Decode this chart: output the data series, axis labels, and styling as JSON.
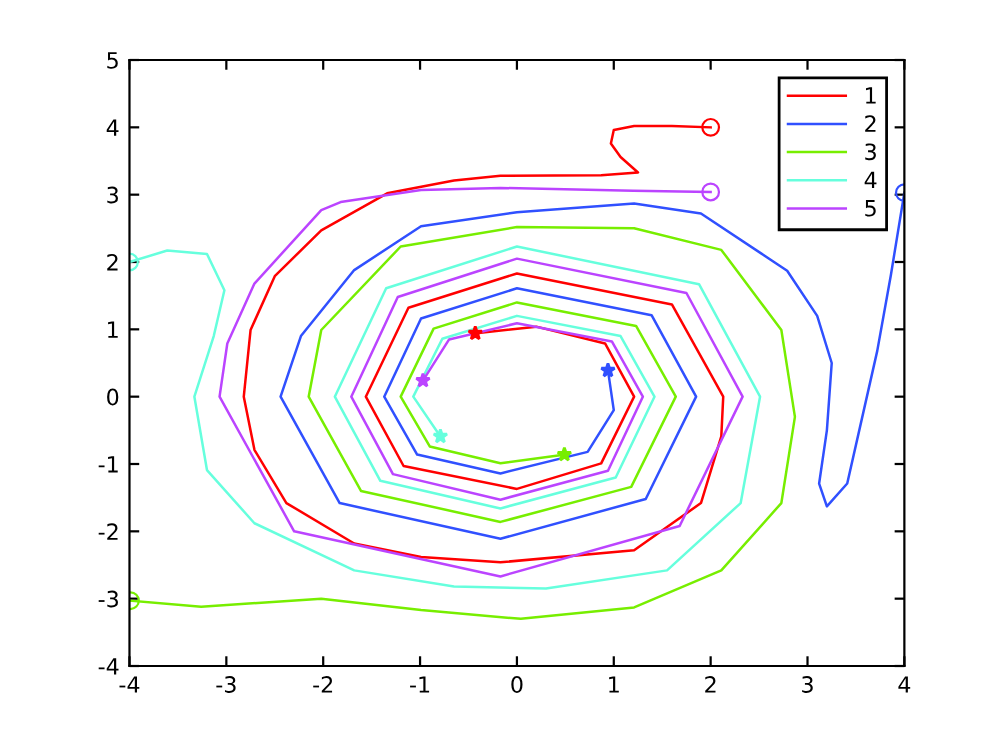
{
  "chart_data": {
    "type": "line",
    "xlim": [
      -4,
      4
    ],
    "ylim": [
      -4,
      5
    ],
    "xticks": [
      -4,
      -3,
      -2,
      -1,
      0,
      1,
      2,
      3,
      4
    ],
    "yticks": [
      -4,
      -3,
      -2,
      -1,
      0,
      1,
      2,
      3,
      4,
      5
    ],
    "grid": false,
    "legend": "top right",
    "series": [
      {
        "name": "1",
        "color": "#ff0000",
        "x": [
          2,
          1.6,
          1.21,
          1.0,
          0.97,
          1.07,
          1.25,
          0.87,
          -0.17,
          -0.65,
          -1.34,
          -2.02,
          -2.5,
          -2.75,
          -2.82,
          -2.71,
          -2.38,
          -1.68,
          -0.99,
          -0.17,
          1.21,
          1.9,
          2.11,
          2.13,
          1.6,
          0,
          -1.12,
          -1.56,
          -1.17,
          0,
          0.87,
          1.21,
          0.91,
          0.2,
          -0.43
        ],
        "values": [
          4,
          4.02,
          4.02,
          3.96,
          3.76,
          3.56,
          3.33,
          3.29,
          3.28,
          3.21,
          3.02,
          2.47,
          1.79,
          0.99,
          0,
          -0.79,
          -1.58,
          -2.18,
          -2.38,
          -2.46,
          -2.28,
          -1.58,
          -0.59,
          0,
          1.37,
          1.83,
          1.32,
          0,
          -1.03,
          -1.37,
          -0.99,
          0,
          0.79,
          1.04,
          0.94
        ]
      },
      {
        "name": "2",
        "color": "#3050ff",
        "x": [
          4,
          3.86,
          3.72,
          3.55,
          3.41,
          3.2,
          3.12,
          3.2,
          3.25,
          3.1,
          2.79,
          1.9,
          1.21,
          0,
          -0.99,
          -1.68,
          -2.23,
          -2.44,
          -1.83,
          -0.17,
          1.33,
          1.85,
          1.39,
          0,
          -0.99,
          -1.37,
          -1.03,
          -0.17,
          0.73,
          1.0,
          0.94
        ],
        "values": [
          3.03,
          1.8,
          0.68,
          -0.4,
          -1.29,
          -1.63,
          -1.29,
          -0.5,
          0.5,
          1.2,
          1.87,
          2.72,
          2.87,
          2.74,
          2.53,
          1.88,
          0.9,
          0,
          -1.58,
          -2.11,
          -1.52,
          0,
          1.21,
          1.61,
          1.16,
          0,
          -0.86,
          -1.14,
          -0.82,
          -0.2,
          0.39
        ]
      },
      {
        "name": "3",
        "color": "#77ee00",
        "x": [
          -3.99,
          -3.26,
          -2.02,
          -0.99,
          0.04,
          1.21,
          2.11,
          2.73,
          2.87,
          2.73,
          2.11,
          1.21,
          0,
          -1.2,
          -2.02,
          -2.15,
          -1.61,
          -0.17,
          1.18,
          1.64,
          1.23,
          0,
          -0.86,
          -1.2,
          -0.9,
          -0.17,
          0.49
        ],
        "values": [
          -3.03,
          -3.12,
          -3.0,
          -3.17,
          -3.3,
          -3.13,
          -2.58,
          -1.58,
          -0.3,
          0.99,
          2.18,
          2.5,
          2.52,
          2.23,
          0.99,
          0,
          -1.4,
          -1.86,
          -1.34,
          0,
          1.05,
          1.4,
          1.01,
          0,
          -0.74,
          -0.99,
          -0.86
        ]
      },
      {
        "name": "4",
        "color": "#66ffdd",
        "x": [
          -4.0,
          -3.61,
          -3.2,
          -3.02,
          -3.13,
          -3.33,
          -3.2,
          -2.71,
          -1.68,
          -0.65,
          0.3,
          1.55,
          2.31,
          2.51,
          1.88,
          0,
          -1.35,
          -1.88,
          -1.41,
          -0.17,
          1.02,
          1.42,
          1.07,
          0,
          -0.77,
          -1.07,
          -0.79
        ],
        "values": [
          2.0,
          2.17,
          2.12,
          1.58,
          0.9,
          0,
          -1.09,
          -1.88,
          -2.58,
          -2.82,
          -2.85,
          -2.58,
          -1.58,
          0,
          1.67,
          2.23,
          1.61,
          0,
          -1.25,
          -1.66,
          -1.2,
          0,
          0.9,
          1.2,
          0.86,
          0,
          -0.59
        ]
      },
      {
        "name": "5",
        "color": "#bb44ff",
        "x": [
          2,
          1.2,
          -0.17,
          -0.99,
          -1.82,
          -2.02,
          -2.71,
          -2.99,
          -3.07,
          -2.3,
          -0.17,
          1.68,
          2.33,
          1.75,
          0,
          -1.23,
          -1.71,
          -1.28,
          -0.17,
          0.94,
          1.3,
          0.98,
          0,
          -0.7,
          -0.97
        ],
        "values": [
          3.04,
          3.06,
          3.1,
          3.07,
          2.89,
          2.77,
          1.68,
          0.79,
          0,
          -2.0,
          -2.67,
          -1.92,
          0,
          1.54,
          2.05,
          1.48,
          0,
          -1.15,
          -1.53,
          -1.1,
          0,
          0.82,
          1.09,
          0.85,
          0.24
        ]
      },
      {
        "type": "scatter",
        "marker": "circle",
        "colors": [
          "#ff0000",
          "#3050ff",
          "#77ee00",
          "#66ffdd",
          "#bb44ff"
        ],
        "x": [
          2,
          4,
          -3.99,
          -4.0,
          2
        ],
        "values": [
          4,
          3.03,
          -3.03,
          2.0,
          3.04
        ]
      },
      {
        "type": "scatter",
        "marker": "star",
        "colors": [
          "#ff0000",
          "#3050ff",
          "#77ee00",
          "#66ffdd",
          "#bb44ff"
        ],
        "x": [
          -0.43,
          0.94,
          0.49,
          -0.79,
          -0.97
        ],
        "values": [
          0.94,
          0.39,
          -0.86,
          -0.59,
          0.24
        ]
      }
    ]
  }
}
